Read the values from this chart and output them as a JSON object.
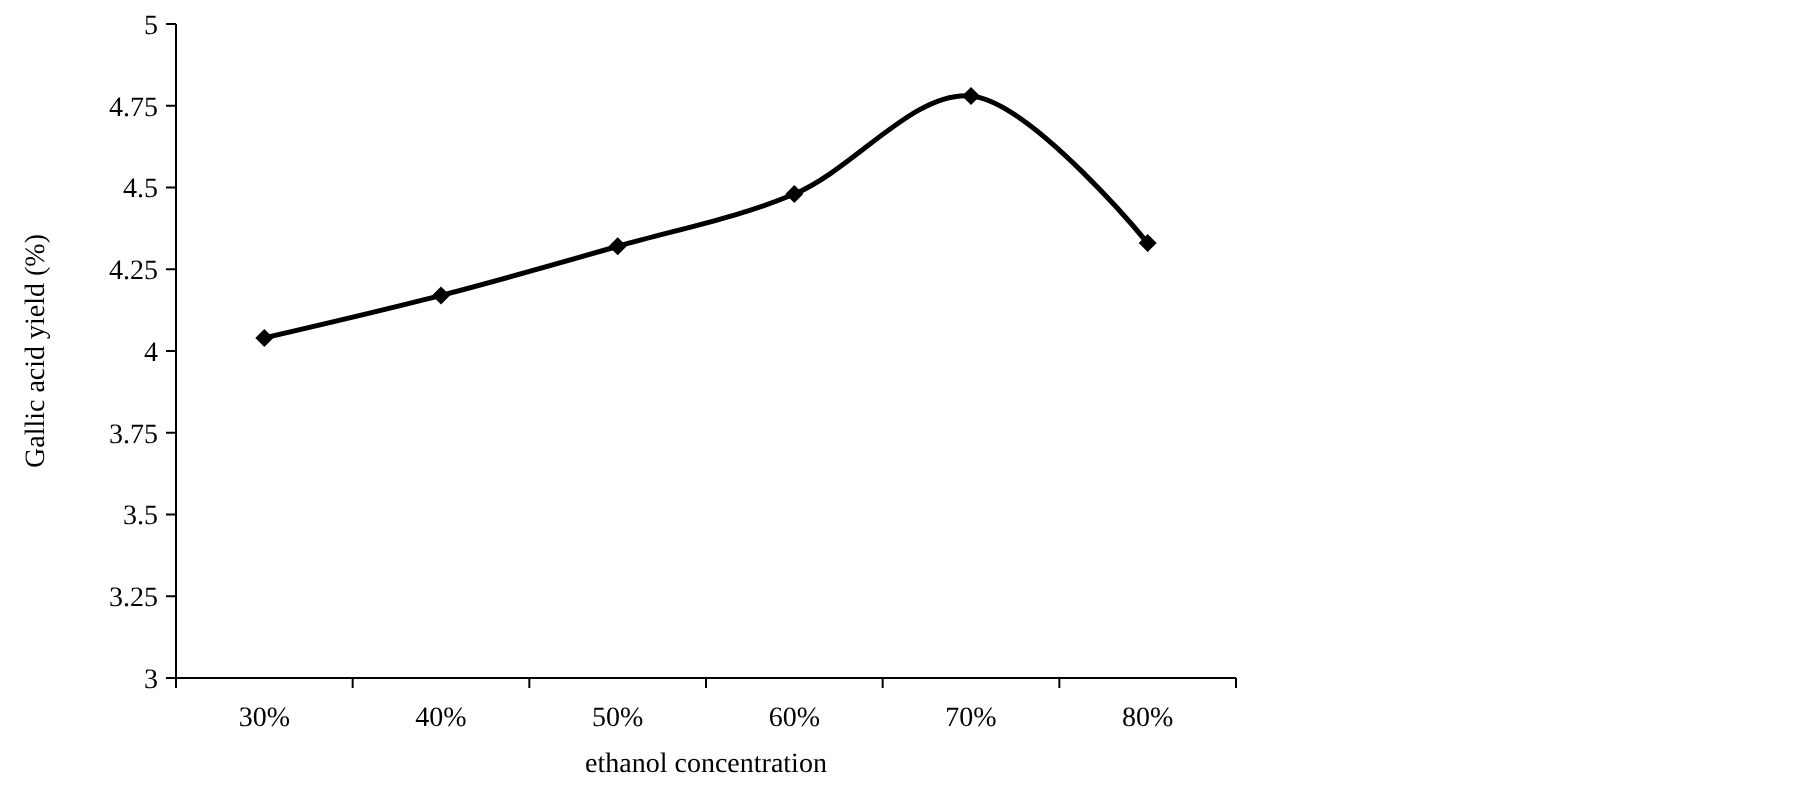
{
  "chart_data": {
    "type": "line",
    "xlabel": "ethanol concentration",
    "ylabel": "Gallic acid yield (%)",
    "categories": [
      "30%",
      "40%",
      "50%",
      "60%",
      "70%",
      "80%"
    ],
    "series": [
      {
        "color": "#000000",
        "values": [
          4.04,
          4.17,
          4.32,
          4.48,
          4.78,
          4.33
        ]
      }
    ],
    "ylim": [
      3,
      5
    ],
    "yticks": [
      3,
      3.25,
      3.5,
      3.75,
      4,
      4.25,
      4.5,
      4.75,
      5
    ],
    "marker": "diamond",
    "line_style": "solid"
  }
}
